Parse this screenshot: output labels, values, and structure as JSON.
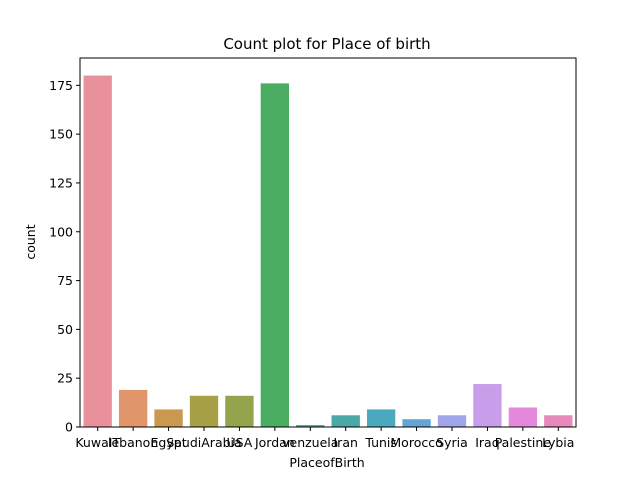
{
  "chart_data": {
    "type": "bar",
    "title": "Count plot for Place of birth",
    "xlabel": "PlaceofBirth",
    "ylabel": "count",
    "categories": [
      "KuwaIT",
      "lebanon",
      "Egypt",
      "SaudiArabia",
      "USA",
      "Jordan",
      "venzuela",
      "Iran",
      "Tunis",
      "Morocco",
      "Syria",
      "Iraq",
      "Palestine",
      "Lybia"
    ],
    "values": [
      180,
      19,
      9,
      16,
      16,
      176,
      1,
      6,
      9,
      4,
      6,
      22,
      10,
      6
    ],
    "colors": [
      "#e8919d",
      "#e0956a",
      "#c9994f",
      "#a7a046",
      "#93a54a",
      "#4aad62",
      "#4aac91",
      "#4aa9a6",
      "#4aa9bc",
      "#63a6d6",
      "#a1a6e8",
      "#c89eea",
      "#e488dc",
      "#e58aba"
    ],
    "ylim": [
      0,
      189
    ],
    "yticks": [
      0,
      25,
      50,
      75,
      100,
      125,
      150,
      175
    ],
    "grid": false,
    "legend": "none"
  }
}
